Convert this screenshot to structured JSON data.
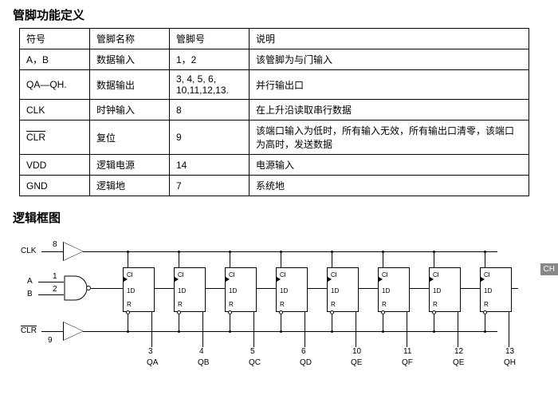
{
  "section1_title": "管脚功能定义",
  "section2_title": "逻辑框图",
  "table": {
    "headers": [
      "符号",
      "管脚名称",
      "管脚号",
      "说明"
    ],
    "rows": [
      {
        "c0": "A，B",
        "c1": "数据输入",
        "c2": "1，2",
        "c3": "该管脚为与门输入"
      },
      {
        "c0": "QA—QH.",
        "c1": "数据输出",
        "c2": "3, 4, 5, 6, 10,11,12,13.",
        "c3": "并行输出口"
      },
      {
        "c0": "CLK",
        "c1": "时钟输入",
        "c2": "8",
        "c3": "在上升沿读取串行数据"
      },
      {
        "c0_over": "CLR",
        "c1": "复位",
        "c2": "9",
        "c3": "该端口输入为低时，所有输入无效，所有输出口清零，该端口为高时，发送数据"
      },
      {
        "c0": "VDD",
        "c1": "逻辑电源",
        "c2": "14",
        "c3": "电源输入"
      },
      {
        "c0": "GND",
        "c1": "逻辑地",
        "c2": "7",
        "c3": "系统地"
      }
    ]
  },
  "diagram": {
    "signals": {
      "clk": "CLK",
      "a": "A",
      "b": "B",
      "clr_over": "CLR"
    },
    "pins": {
      "clk": "8",
      "a": "1",
      "b": "2",
      "clr": "9"
    },
    "ff_labels": {
      "cl": "Cl",
      "d": "1D",
      "r": "R"
    },
    "outputs": [
      {
        "name": "QA",
        "pin": "3"
      },
      {
        "name": "QB",
        "pin": "4"
      },
      {
        "name": "QC",
        "pin": "5"
      },
      {
        "name": "QD",
        "pin": "6"
      },
      {
        "name": "QE",
        "pin": "10"
      },
      {
        "name": "QF",
        "pin": "11"
      },
      {
        "name": "QE",
        "pin": "12"
      },
      {
        "name": "QH",
        "pin": "13"
      }
    ],
    "colors": {
      "line": "#000000",
      "bg": "#ffffff"
    }
  },
  "side_tab": "CH"
}
